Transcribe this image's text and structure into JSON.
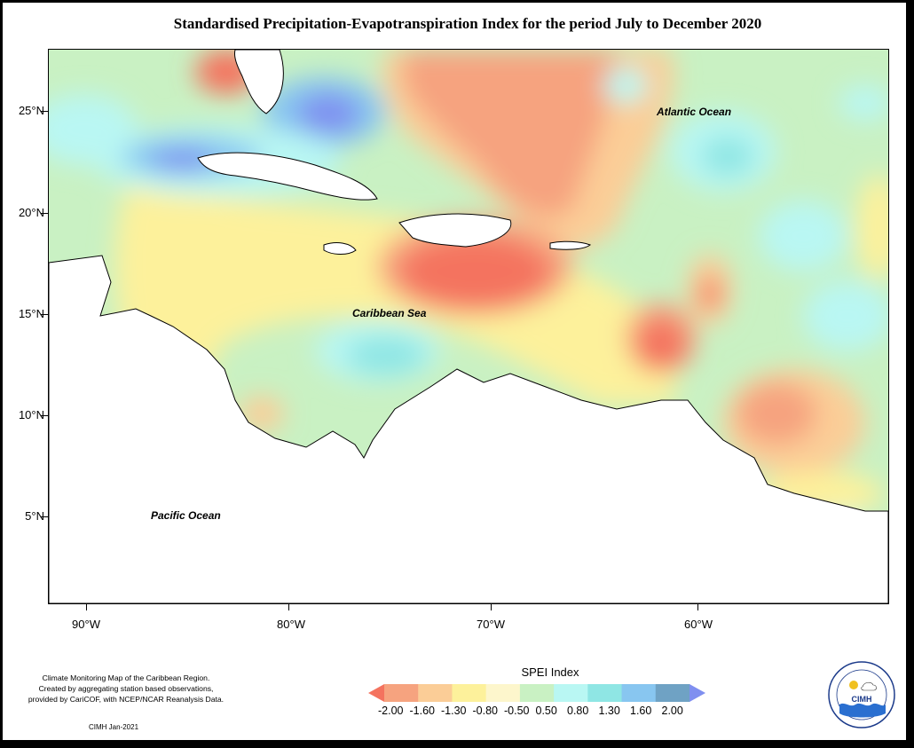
{
  "title": "Standardised Precipitation-Evapotranspiration Index for the period July to December 2020",
  "map": {
    "lat_labels": [
      "25°N",
      "20°N",
      "15°N",
      "10°N",
      "5°N"
    ],
    "lon_labels": [
      "90°W",
      "80°W",
      "70°W",
      "60°W"
    ],
    "places": {
      "atlantic": "Atlantic Ocean",
      "caribbean": "Caribbean Sea",
      "pacific": "Pacific Ocean"
    }
  },
  "legend": {
    "title": "SPEI Index",
    "ticks": [
      "-2.00",
      "-1.60",
      "-1.30",
      "-0.80",
      "-0.50",
      "0.50",
      "0.80",
      "1.30",
      "1.60",
      "2.00"
    ],
    "colors": [
      "#f4735f",
      "#f6a37f",
      "#fbcd97",
      "#fdf19b",
      "#fdf6cc",
      "#c9f1c3",
      "#b9f7f3",
      "#8fe6e4",
      "#88c6f0",
      "#6fa2c4",
      "#7f8ff0"
    ]
  },
  "credit": {
    "lines": [
      "Climate Monitoring Map of the Caribbean Region.",
      "Created by aggregating station based observations,",
      "provided by CariCOF, with NCEP/NCAR Reanalysis Data."
    ],
    "date": "CIMH Jan-2021"
  },
  "logo": {
    "text": "CIMH"
  }
}
